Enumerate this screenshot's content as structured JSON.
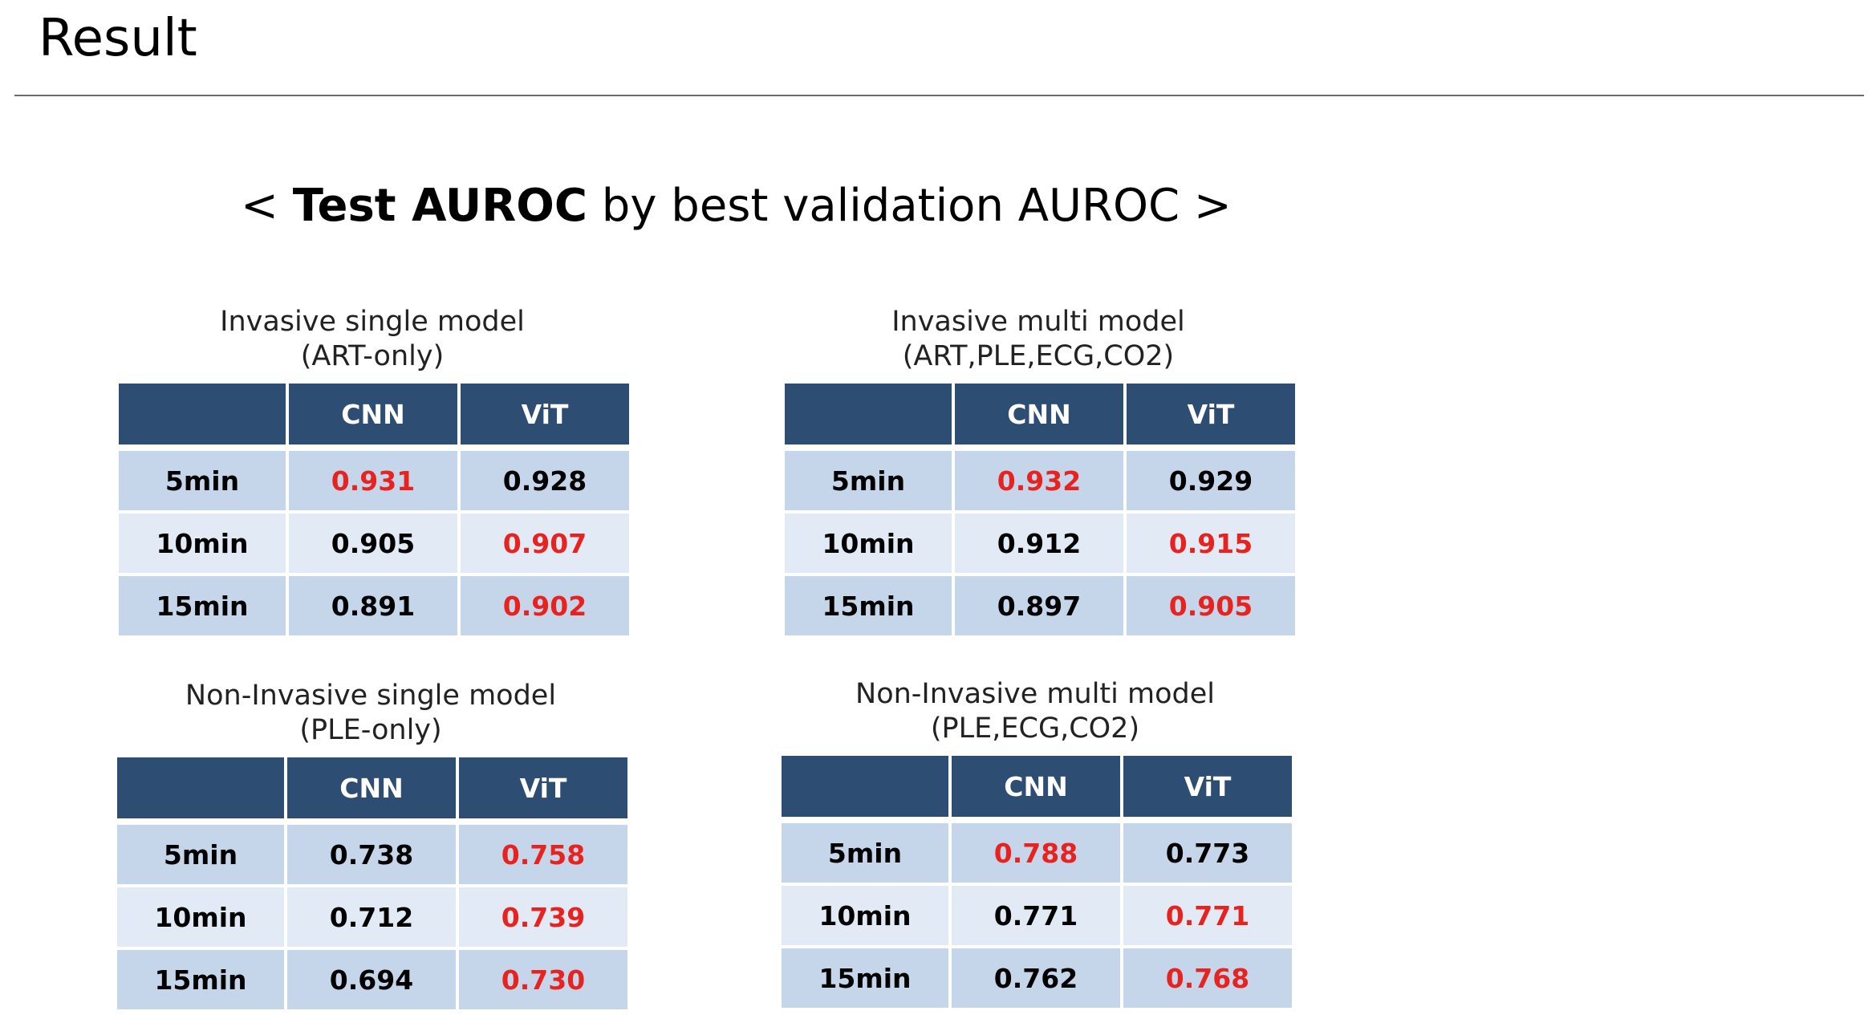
{
  "page": {
    "heading": "Result",
    "subtitle": {
      "open": "< ",
      "bold": "Test AUROC",
      "rest": " by best validation AUROC >"
    }
  },
  "colors": {
    "header_bg": "#2d4d73",
    "row_dark": "#c5d6eb",
    "row_light": "#e2eaf5",
    "best_value": "#e8231f"
  },
  "tables": [
    {
      "caption_line1": "Invasive single model",
      "caption_line2": "(ART-only)",
      "columns": [
        "",
        "CNN",
        "ViT"
      ],
      "rows": [
        {
          "label": "5min",
          "cnn": "0.931",
          "vit": "0.928",
          "best": "cnn"
        },
        {
          "label": "10min",
          "cnn": "0.905",
          "vit": "0.907",
          "best": "vit"
        },
        {
          "label": "15min",
          "cnn": "0.891",
          "vit": "0.902",
          "best": "vit"
        }
      ]
    },
    {
      "caption_line1": "Invasive multi model",
      "caption_line2": "(ART,PLE,ECG,CO2)",
      "columns": [
        "",
        "CNN",
        "ViT"
      ],
      "rows": [
        {
          "label": "5min",
          "cnn": "0.932",
          "vit": "0.929",
          "best": "cnn"
        },
        {
          "label": "10min",
          "cnn": "0.912",
          "vit": "0.915",
          "best": "vit"
        },
        {
          "label": "15min",
          "cnn": "0.897",
          "vit": "0.905",
          "best": "vit"
        }
      ]
    },
    {
      "caption_line1": "Non-Invasive single model",
      "caption_line2": "(PLE-only)",
      "columns": [
        "",
        "CNN",
        "ViT"
      ],
      "rows": [
        {
          "label": "5min",
          "cnn": "0.738",
          "vit": "0.758",
          "best": "vit"
        },
        {
          "label": "10min",
          "cnn": "0.712",
          "vit": "0.739",
          "best": "vit"
        },
        {
          "label": "15min",
          "cnn": "0.694",
          "vit": "0.730",
          "best": "vit"
        }
      ]
    },
    {
      "caption_line1": "Non-Invasive multi model",
      "caption_line2": "(PLE,ECG,CO2)",
      "columns": [
        "",
        "CNN",
        "ViT"
      ],
      "rows": [
        {
          "label": "5min",
          "cnn": "0.788",
          "vit": "0.773",
          "best": "cnn"
        },
        {
          "label": "10min",
          "cnn": "0.771",
          "vit": "0.771",
          "best": "vit"
        },
        {
          "label": "15min",
          "cnn": "0.762",
          "vit": "0.768",
          "best": "vit"
        }
      ]
    }
  ]
}
